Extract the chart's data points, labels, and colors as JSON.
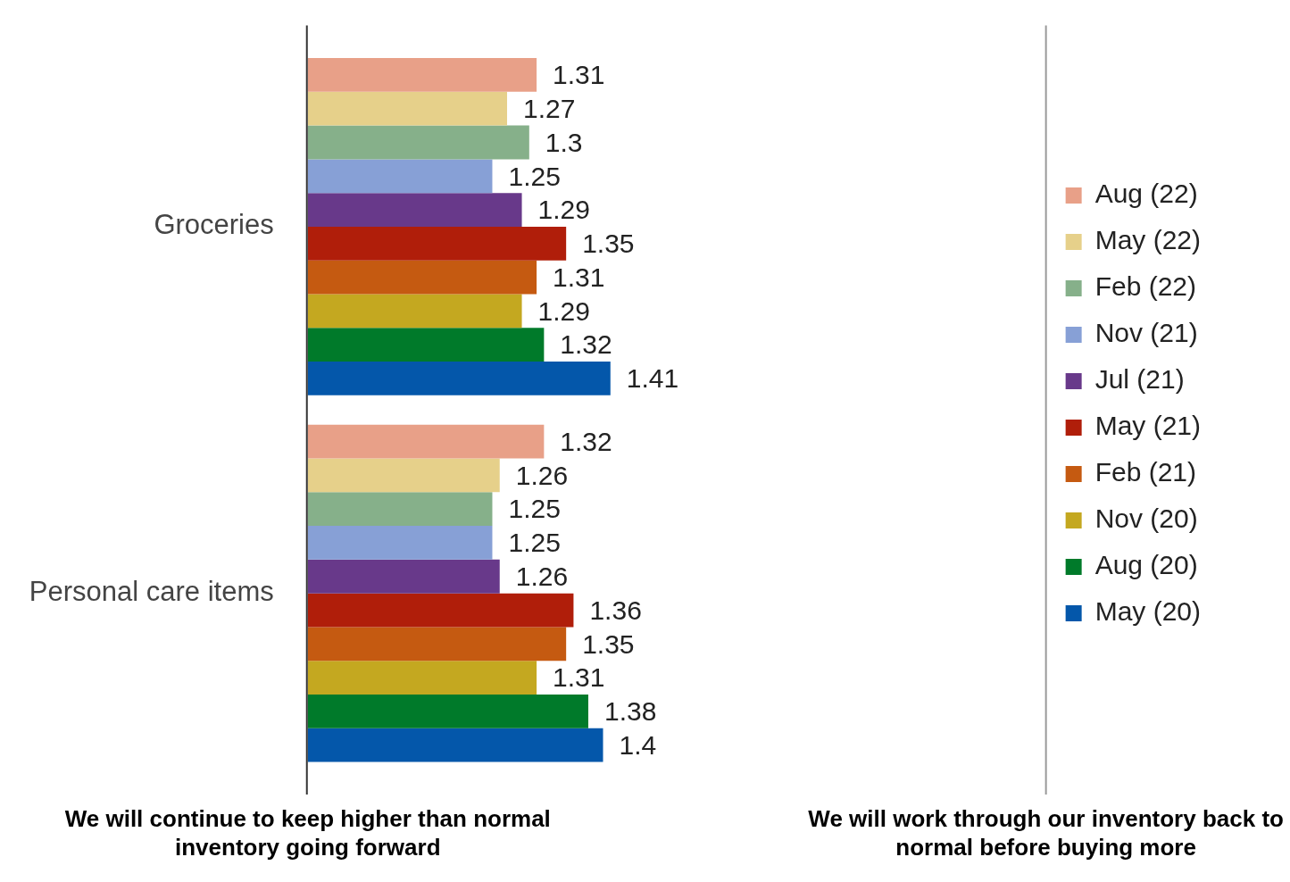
{
  "chart_data": {
    "type": "bar",
    "orientation": "horizontal",
    "categories": [
      "Groceries",
      "Personal care items"
    ],
    "series": [
      {
        "name": "Aug (22)",
        "color": "#e8a088",
        "values": [
          1.31,
          1.32
        ]
      },
      {
        "name": "May (22)",
        "color": "#e6d08a",
        "values": [
          1.27,
          1.26
        ]
      },
      {
        "name": "Feb (22)",
        "color": "#86b08a",
        "values": [
          1.3,
          1.25
        ]
      },
      {
        "name": "Nov (21)",
        "color": "#87a0d6",
        "values": [
          1.25,
          1.25
        ]
      },
      {
        "name": "Jul (21)",
        "color": "#68398a",
        "values": [
          1.29,
          1.26
        ]
      },
      {
        "name": "May (21)",
        "color": "#b01e0a",
        "values": [
          1.35,
          1.36
        ]
      },
      {
        "name": "Feb (21)",
        "color": "#c55a11",
        "values": [
          1.31,
          1.35
        ]
      },
      {
        "name": "Nov (20)",
        "color": "#c4a820",
        "values": [
          1.29,
          1.31
        ]
      },
      {
        "name": "Aug (20)",
        "color": "#007a2a",
        "values": [
          1.32,
          1.38
        ]
      },
      {
        "name": "May (20)",
        "color": "#0457aa",
        "values": [
          1.41,
          1.4
        ]
      }
    ],
    "xlim": [
      1,
      2
    ],
    "annotations": [
      "We will continue to keep higher than normal inventory going forward"
    ],
    "ref_lines": [
      {
        "axis": "x",
        "value": 2,
        "label": "We will work through our inventory back to normal before buying more",
        "color": "#999999"
      }
    ],
    "tick_labels": "y",
    "legend": "right",
    "data_labels": true
  }
}
